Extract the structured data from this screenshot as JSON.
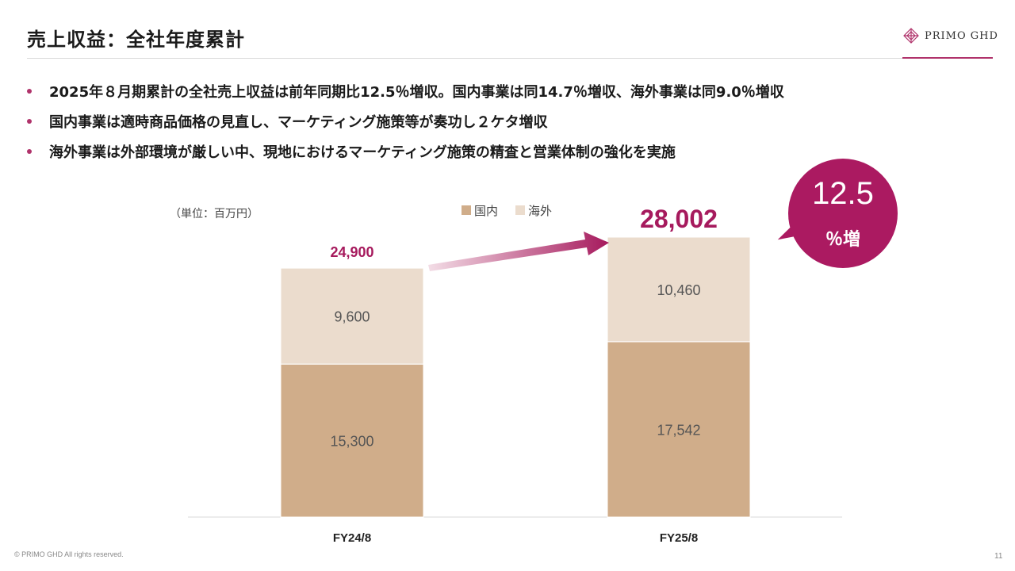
{
  "page": {
    "title": "売上収益：全社年度累計",
    "logo_text": "PRIMO GHD",
    "bullets": [
      "2025年８月期累計の全社売上収益は前年同期比12.5％増収。国内事業は同14.7％増収、海外事業は同9.0％増収",
      "国内事業は適時商品価格の見直し、マーケティング施策等が奏功し２ケタ増収",
      "海外事業は外部環境が厳しい中、現地におけるマーケティング施策の精査と営業体制の強化を実施"
    ],
    "copyright": "© PRIMO GHD All rights reserved.",
    "page_number": "11"
  },
  "badge": {
    "value": "12.5",
    "unit": "％増"
  },
  "chart_data": {
    "type": "bar",
    "stacked": true,
    "unit_label": "（単位：百万円）",
    "categories": [
      "FY24/8",
      "FY25/8"
    ],
    "series": [
      {
        "name": "国内",
        "values": [
          15300,
          17542
        ],
        "labels": [
          "15,300",
          "17,542"
        ],
        "color": "#d0ad8a"
      },
      {
        "name": "海外",
        "values": [
          9600,
          10460
        ],
        "labels": [
          "9,600",
          "10,460"
        ],
        "color": "#ebdccd"
      }
    ],
    "totals": [
      24900,
      28002
    ],
    "total_labels": [
      "24,900",
      "28,002"
    ],
    "total_color": "#a61a5d",
    "ylim": [
      0,
      28002
    ],
    "legend_position": "top-center",
    "grid": false
  }
}
